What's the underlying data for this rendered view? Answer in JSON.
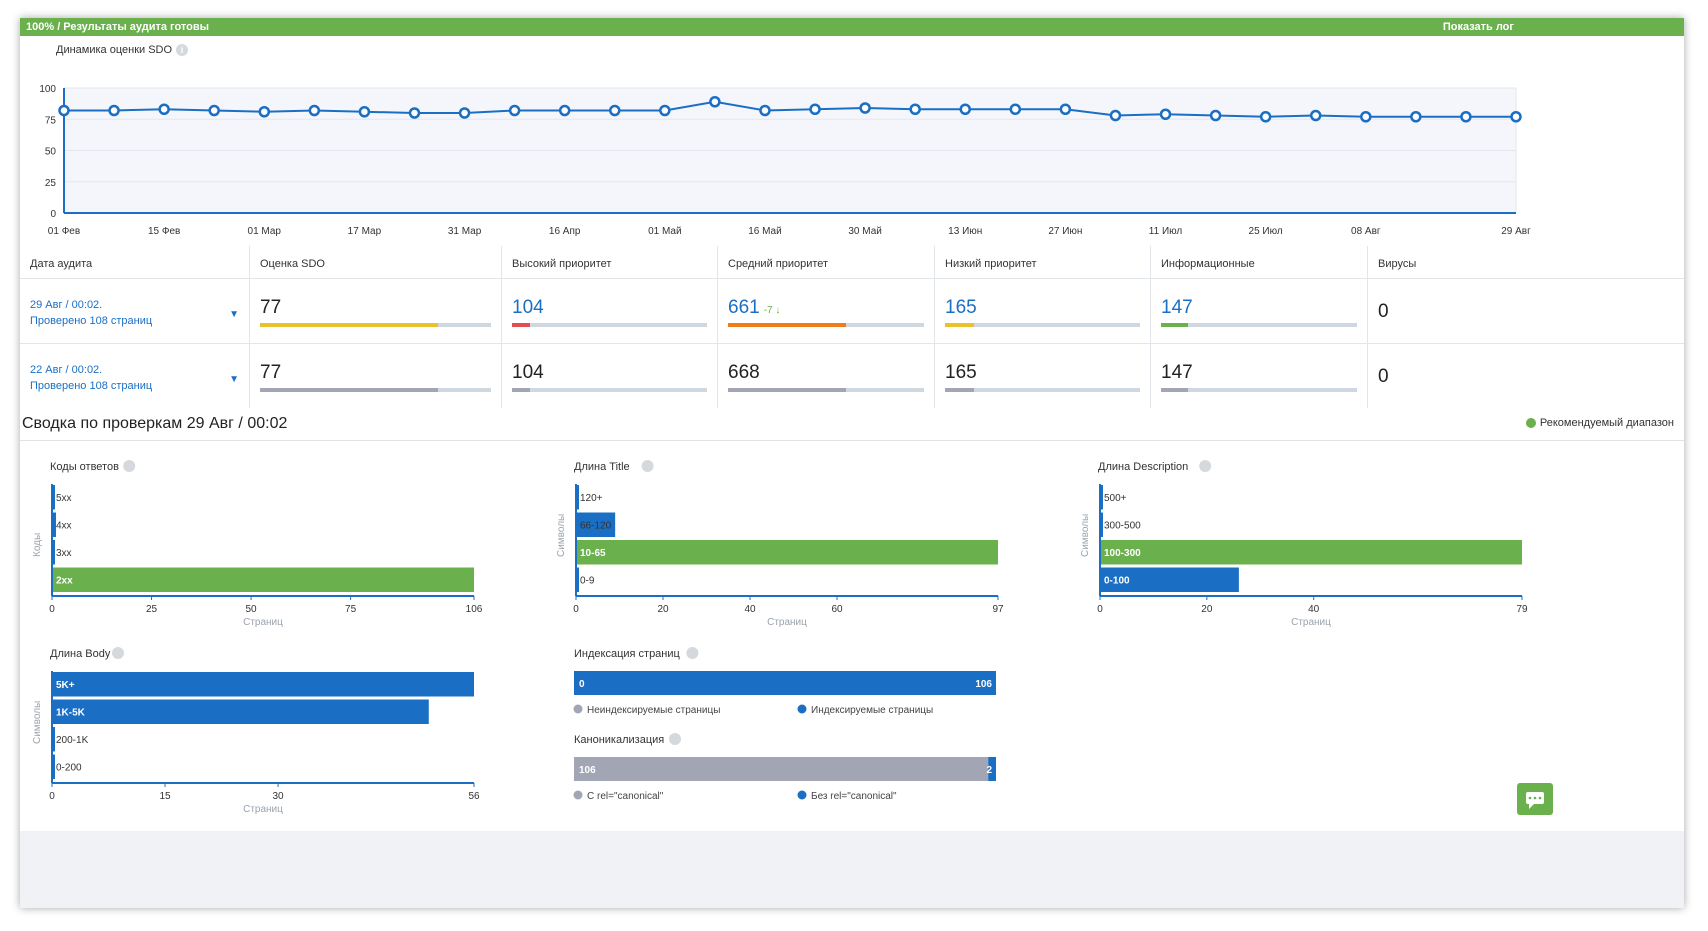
{
  "topbar": {
    "status": "100% / Результаты аудита готовы",
    "log": "Показать лог"
  },
  "chart": {
    "title": "Динамика оценки SDO",
    "y_ticks": [
      "100",
      "75",
      "50",
      "25",
      "0"
    ],
    "x_ticks": [
      "01 Фев",
      "15 Фев",
      "01 Мар",
      "17 Мар",
      "31 Мар",
      "16 Апр",
      "01 Май",
      "16 Май",
      "30 Май",
      "13 Июн",
      "27 Июн",
      "11 Июл",
      "25 Июл",
      "08 Авг",
      "29 Авг"
    ]
  },
  "chart_data": [
    {
      "type": "line",
      "title": "Динамика оценки SDO",
      "ylim": [
        0,
        100
      ],
      "values": [
        82,
        82,
        83,
        82,
        81,
        82,
        81,
        80,
        80,
        82,
        82,
        82,
        82,
        89,
        82,
        83,
        84,
        83,
        83,
        83,
        83,
        78,
        79,
        78,
        77,
        78,
        77,
        77,
        77,
        77
      ],
      "color": "#1a6fc4"
    },
    {
      "type": "bar",
      "title": "Коды ответов",
      "ylabel": "Коды",
      "xlabel": "Страниц",
      "categories": [
        "5xx",
        "4xx",
        "3xx",
        "2xx"
      ],
      "values": [
        0,
        1,
        0,
        106
      ],
      "xmax": 106,
      "ticks": [
        0,
        25,
        50,
        75,
        106
      ]
    },
    {
      "type": "bar",
      "title": "Длина Title",
      "ylabel": "Символы",
      "xlabel": "Страниц",
      "categories": [
        "120+",
        "66-120",
        "10-65",
        "0-9"
      ],
      "values": [
        0,
        9,
        97,
        0
      ],
      "xmax": 97,
      "ticks": [
        0,
        20,
        40,
        60,
        97
      ]
    },
    {
      "type": "bar",
      "title": "Длина Description",
      "ylabel": "Символы",
      "xlabel": "Страниц",
      "categories": [
        "500+",
        "300-500",
        "100-300",
        "0-100"
      ],
      "values": [
        0,
        0,
        79,
        26
      ],
      "xmax": 79,
      "ticks": [
        0,
        20,
        40,
        79
      ]
    },
    {
      "type": "bar",
      "title": "Длина Body",
      "ylabel": "Символы",
      "xlabel": "Страниц",
      "categories": [
        "5K+",
        "1K-5K",
        "200-1K",
        "0-200"
      ],
      "values": [
        56,
        50,
        0,
        0
      ],
      "xmax": 56,
      "ticks": [
        0,
        15,
        30,
        56
      ]
    },
    {
      "type": "bar",
      "title": "Индексация страниц",
      "series": [
        {
          "name": "Неиндексируемые страницы",
          "values": [
            0
          ]
        },
        {
          "name": "Индексируемые страницы",
          "values": [
            106
          ]
        }
      ]
    },
    {
      "type": "bar",
      "title": "Каноникализация",
      "series": [
        {
          "name": "С rel=\"canonical\"",
          "values": [
            106
          ]
        },
        {
          "name": "Без rel=\"canonical\"",
          "values": [
            2
          ]
        }
      ]
    }
  ],
  "table": {
    "headers": [
      "Дата аудита",
      "Оценка SDO",
      "Высокий приоритет",
      "Средний приоритет",
      "Низкий приоритет",
      "Информационные",
      "Вирусы"
    ],
    "rows": [
      {
        "date": "29 Авг / 00:02.",
        "pages": "Проверено 108 страниц",
        "cells": [
          {
            "value": "77",
            "blue": false,
            "fill": 0.77,
            "color": "#e8c12b"
          },
          {
            "value": "104",
            "blue": true,
            "fill": 0.09,
            "color": "#e05050"
          },
          {
            "value": "661",
            "blue": true,
            "fill": 0.6,
            "color": "#f07d1a",
            "delta": "-7"
          },
          {
            "value": "165",
            "blue": true,
            "fill": 0.15,
            "color": "#e8c12b"
          },
          {
            "value": "147",
            "blue": true,
            "fill": 0.14,
            "color": "#6ab04c"
          },
          {
            "value": "0",
            "blue": false,
            "fill": null,
            "color": ""
          }
        ]
      },
      {
        "date": "22 Авг / 00:02.",
        "pages": "Проверено 108 страниц",
        "cells": [
          {
            "value": "77",
            "blue": false,
            "fill": 0.77,
            "color": "#a2a6b4"
          },
          {
            "value": "104",
            "blue": false,
            "fill": 0.09,
            "color": "#a2a6b4"
          },
          {
            "value": "668",
            "blue": false,
            "fill": 0.6,
            "color": "#a2a6b4"
          },
          {
            "value": "165",
            "blue": false,
            "fill": 0.15,
            "color": "#a2a6b4"
          },
          {
            "value": "147",
            "blue": false,
            "fill": 0.14,
            "color": "#a2a6b4"
          },
          {
            "value": "0",
            "blue": false,
            "fill": null,
            "color": ""
          }
        ]
      }
    ]
  },
  "summary": {
    "title": "Сводка по проверкам 29 Авг / 00:02",
    "legend": "Рекомендуемый диапазон",
    "index_values": {
      "left": "0",
      "right": "106"
    },
    "canon_values": {
      "left": "106",
      "right": "2"
    }
  },
  "colors": {
    "green": "#6ab04c",
    "blue": "#1a6fc4",
    "gray": "#a2a6b4"
  }
}
